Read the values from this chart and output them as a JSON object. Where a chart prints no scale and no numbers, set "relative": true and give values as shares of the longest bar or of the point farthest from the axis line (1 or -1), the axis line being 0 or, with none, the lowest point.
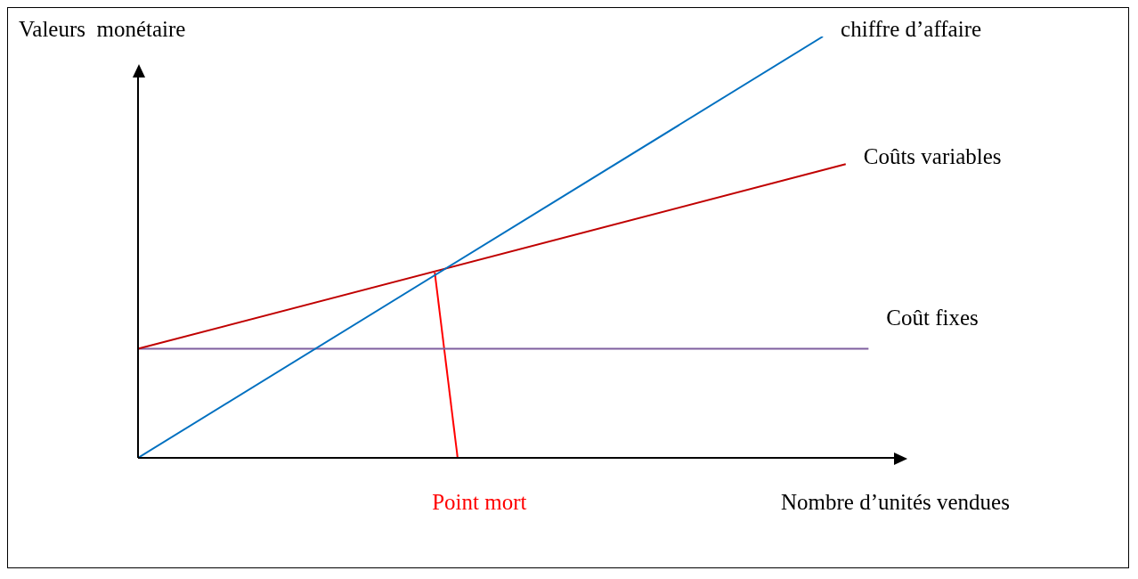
{
  "chart_data": {
    "type": "line",
    "relative": true,
    "ylabel": "Valeurs  monétaire",
    "xlabel": "Nombre d’unités vendues",
    "legend": false,
    "marker": "none",
    "categories": [
      null,
      null,
      null,
      null,
      null,
      null,
      null,
      null,
      null,
      null,
      null,
      null,
      null,
      null,
      null,
      null,
      null,
      null,
      null,
      null,
      null,
      null,
      null,
      null,
      null,
      null,
      null,
      null,
      null,
      null,
      null,
      null,
      null,
      null
    ],
    "series": [
      {
        "name": "chiffre d’affaire",
        "color": "#0070c0",
        "values": [
          0,
          null,
          null,
          null,
          null,
          null,
          null,
          null,
          null,
          null,
          null,
          null,
          null,
          null,
          null,
          null,
          null,
          null,
          null,
          null,
          null,
          null,
          null,
          null,
          null,
          null,
          null,
          null,
          null,
          null,
          1,
          null,
          null,
          null
        ]
      },
      {
        "name": "Coûts variables",
        "color": "#c00000",
        "values": [
          0.259,
          null,
          null,
          null,
          null,
          null,
          null,
          null,
          null,
          null,
          null,
          null,
          null,
          null,
          null,
          null,
          null,
          null,
          null,
          null,
          null,
          null,
          null,
          null,
          null,
          null,
          null,
          null,
          null,
          null,
          null,
          0.697,
          null,
          null
        ]
      },
      {
        "name": "Coût fixes",
        "color": "#7f5f9f",
        "values": [
          0.259,
          null,
          null,
          null,
          null,
          null,
          null,
          null,
          null,
          null,
          null,
          null,
          null,
          null,
          null,
          null,
          null,
          null,
          null,
          null,
          null,
          null,
          null,
          null,
          null,
          null,
          null,
          null,
          null,
          null,
          null,
          null,
          0.259,
          null
        ]
      },
      {
        "name": "Point mort",
        "color": "#ff0000",
        "values": [
          null,
          null,
          null,
          null,
          null,
          null,
          null,
          null,
          null,
          null,
          null,
          null,
          null,
          0.44,
          0,
          null,
          null,
          null,
          null,
          null,
          null,
          null,
          null,
          null,
          null,
          null,
          null,
          null,
          null,
          null,
          null,
          null,
          null,
          null
        ]
      }
    ]
  }
}
